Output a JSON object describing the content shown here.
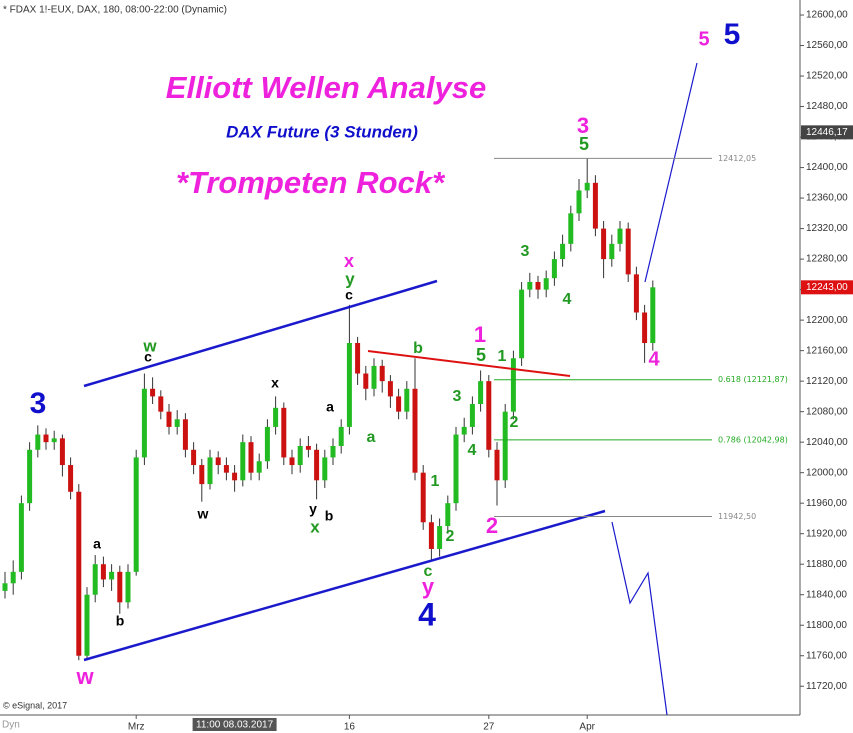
{
  "chart_data": {
    "type": "candlestick",
    "header": "* FDAX 1!-EUX, DAX, 180, 08:00-22:00 (Dynamic)",
    "title": "Elliott Wellen Analyse",
    "subtitle": "DAX Future (3 Stunden)",
    "tagline": "*Trompeten Rock*",
    "title_color": "#ee22dd",
    "subtitle_color": "#1010cc",
    "footer": "© eSignal, 2017",
    "corner_label": "Dyn",
    "up_color": "#22bb22",
    "down_color": "#cc1111",
    "categories": [
      null,
      null,
      null,
      null,
      null,
      null,
      null,
      null,
      null,
      null,
      null,
      null,
      null,
      null,
      null,
      null,
      "Mrz",
      null,
      null,
      null,
      null,
      null,
      null,
      null,
      null,
      null,
      null,
      null,
      "11:00 08.03.2017",
      null,
      null,
      null,
      null,
      null,
      null,
      null,
      null,
      null,
      null,
      null,
      null,
      null,
      "16",
      null,
      null,
      null,
      null,
      null,
      null,
      null,
      null,
      null,
      null,
      null,
      null,
      null,
      null,
      null,
      null,
      "27",
      null,
      null,
      null,
      null,
      null,
      null,
      null,
      null,
      null,
      null,
      null,
      "Apr",
      null,
      null,
      null,
      null,
      null,
      null,
      null,
      null
    ],
    "open": [
      11845,
      11855,
      11870,
      11960,
      12030,
      12050,
      12040,
      12045,
      12010,
      11975,
      11760,
      11840,
      11880,
      11860,
      11870,
      11830,
      11870,
      12020,
      12110,
      12100,
      12080,
      12060,
      12070,
      12030,
      12010,
      11985,
      12020,
      12010,
      12000,
      11990,
      12040,
      12000,
      12015,
      12060,
      12085,
      12020,
      12010,
      12035,
      12030,
      11990,
      12020,
      12035,
      12060,
      12170,
      12130,
      12110,
      12140,
      12120,
      12100,
      12080,
      12110,
      12000,
      11935,
      11900,
      11930,
      11960,
      12050,
      12060,
      12090,
      12120,
      12030,
      11990,
      12080,
      12150,
      12240,
      12250,
      12240,
      12255,
      12280,
      12300,
      12340,
      12370,
      12380,
      12320,
      12280,
      12300,
      12320,
      12260,
      12210,
      12170
    ],
    "high": [
      11870,
      11885,
      11970,
      12040,
      12062,
      12058,
      12055,
      12050,
      12020,
      11985,
      11850,
      11892,
      11890,
      11880,
      11878,
      11880,
      12030,
      12130,
      12125,
      12108,
      12090,
      12082,
      12078,
      12040,
      12018,
      12030,
      12028,
      12020,
      12010,
      12050,
      12048,
      12025,
      12070,
      12100,
      12092,
      12030,
      12045,
      12048,
      12038,
      12030,
      12045,
      12070,
      12220,
      12178,
      12140,
      12150,
      12148,
      12128,
      12110,
      12120,
      12150,
      12010,
      11945,
      11940,
      11970,
      12060,
      12072,
      12100,
      12134,
      12128,
      12040,
      12090,
      12160,
      12250,
      12262,
      12258,
      12265,
      12290,
      12312,
      12350,
      12385,
      12412,
      12390,
      12330,
      12312,
      12330,
      12328,
      12270,
      12220,
      12252
    ],
    "low": [
      11835,
      11840,
      11860,
      11950,
      12020,
      12030,
      12030,
      11995,
      11965,
      11754,
      11755,
      11830,
      11850,
      11845,
      11815,
      11822,
      11865,
      12010,
      12090,
      12070,
      12050,
      12050,
      12020,
      11998,
      11962,
      11978,
      11998,
      11990,
      11975,
      11982,
      11990,
      11990,
      12005,
      12050,
      12010,
      11998,
      12000,
      12020,
      11965,
      11980,
      12010,
      12025,
      12050,
      12115,
      12095,
      12100,
      12105,
      12085,
      12070,
      12070,
      11990,
      11925,
      11885,
      11890,
      11920,
      11950,
      12040,
      12050,
      12080,
      12020,
      11957,
      11980,
      12070,
      12140,
      12230,
      12228,
      12230,
      12245,
      12270,
      12290,
      12330,
      12360,
      12310,
      12255,
      12270,
      12290,
      12250,
      12200,
      12144,
      12160
    ],
    "close": [
      11855,
      11870,
      11960,
      12030,
      12050,
      12040,
      12045,
      12010,
      11975,
      11760,
      11840,
      11880,
      11860,
      11870,
      11830,
      11870,
      12020,
      12110,
      12100,
      12080,
      12060,
      12070,
      12030,
      12010,
      11985,
      12020,
      12010,
      12000,
      11990,
      12040,
      12000,
      12015,
      12060,
      12085,
      12020,
      12010,
      12035,
      12030,
      11990,
      12020,
      12035,
      12060,
      12170,
      12130,
      12110,
      12140,
      12120,
      12100,
      12080,
      12110,
      12000,
      11935,
      11900,
      11930,
      11960,
      12050,
      12060,
      12090,
      12120,
      12030,
      11990,
      12080,
      12150,
      12240,
      12250,
      12240,
      12255,
      12280,
      12300,
      12340,
      12370,
      12380,
      12320,
      12280,
      12300,
      12320,
      12260,
      12210,
      12170,
      12243
    ],
    "ylim": [
      11682.3,
      12619.7
    ],
    "yticks": [
      {
        "value": 12600,
        "label": "12600,00"
      },
      {
        "value": 12560,
        "label": "12560,00"
      },
      {
        "value": 12520,
        "label": "12520,00"
      },
      {
        "value": 12480,
        "label": "12480,00"
      },
      {
        "value": 12440,
        "label": "12440,00"
      },
      {
        "value": 12400,
        "label": "12400,00"
      },
      {
        "value": 12360,
        "label": "12360,00"
      },
      {
        "value": 12320,
        "label": "12320,00"
      },
      {
        "value": 12280,
        "label": "12280,00"
      },
      {
        "value": 12240,
        "label": "12240,00"
      },
      {
        "value": 12200,
        "label": "12200,00"
      },
      {
        "value": 12160,
        "label": "12160,00"
      },
      {
        "value": 12120,
        "label": "12120,00"
      },
      {
        "value": 12080,
        "label": "12080,00"
      },
      {
        "value": 12040,
        "label": "12040,00"
      },
      {
        "value": 12000,
        "label": "12000,00"
      },
      {
        "value": 11960,
        "label": "11960,00"
      },
      {
        "value": 11920,
        "label": "11920,00"
      },
      {
        "value": 11880,
        "label": "11880,00"
      },
      {
        "value": 11840,
        "label": "11840,00"
      },
      {
        "value": 11800,
        "label": "11800,00"
      },
      {
        "value": 11760,
        "label": "11760,00"
      },
      {
        "value": 11720,
        "label": "11720,00"
      }
    ],
    "levels": [
      {
        "value": 12412.05,
        "label": "12412,05",
        "color": "#888888"
      },
      {
        "value": 12121.87,
        "label": "0.618 (12121,87)",
        "color": "#22aa22"
      },
      {
        "value": 12042.98,
        "label": "0.786 (12042,98)",
        "color": "#22aa22"
      },
      {
        "value": 11942.5,
        "label": "11942,50",
        "color": "#888888"
      }
    ],
    "price_markers": [
      {
        "value": 12446.17,
        "label": "12446,17",
        "color": "#444444"
      },
      {
        "value": 12243,
        "label": "12243,00",
        "color": "#dd1111"
      }
    ],
    "annotations": [
      {
        "text": "5",
        "color": "#ee22dd"
      },
      {
        "text": "5",
        "color": "#1010cc"
      },
      {
        "text": "3",
        "color": "#1010cc"
      },
      {
        "text": "w",
        "color": "#229922"
      },
      {
        "text": "c",
        "color": "#000000"
      },
      {
        "text": "a",
        "color": "#000000"
      },
      {
        "text": "b",
        "color": "#000000"
      },
      {
        "text": "w",
        "color": "#ee22dd"
      },
      {
        "text": "x",
        "color": "#000000"
      },
      {
        "text": "a",
        "color": "#000000"
      },
      {
        "text": "w",
        "color": "#000000"
      },
      {
        "text": "y",
        "color": "#000000"
      },
      {
        "text": "b",
        "color": "#000000"
      },
      {
        "text": "x",
        "color": "#229922"
      },
      {
        "text": "x",
        "color": "#ee22dd"
      },
      {
        "text": "y",
        "color": "#229922"
      },
      {
        "text": "c",
        "color": "#000000"
      },
      {
        "text": "a",
        "color": "#229922"
      },
      {
        "text": "b",
        "color": "#229922"
      },
      {
        "text": "1",
        "color": "#229922"
      },
      {
        "text": "2",
        "color": "#229922"
      },
      {
        "text": "c",
        "color": "#229922"
      },
      {
        "text": "y",
        "color": "#ee22dd"
      },
      {
        "text": "4",
        "color": "#1010cc"
      },
      {
        "text": "3",
        "color": "#229922"
      },
      {
        "text": "4",
        "color": "#229922"
      },
      {
        "text": "1",
        "color": "#ee22dd"
      },
      {
        "text": "5",
        "color": "#229922"
      },
      {
        "text": "1",
        "color": "#229922"
      },
      {
        "text": "2",
        "color": "#229922"
      },
      {
        "text": "2",
        "color": "#ee22dd"
      },
      {
        "text": "3",
        "color": "#229922"
      },
      {
        "text": "4",
        "color": "#229922"
      },
      {
        "text": "3",
        "color": "#ee22dd"
      },
      {
        "text": "5",
        "color": "#229922"
      },
      {
        "text": "4",
        "color": "#ee22dd"
      }
    ]
  }
}
